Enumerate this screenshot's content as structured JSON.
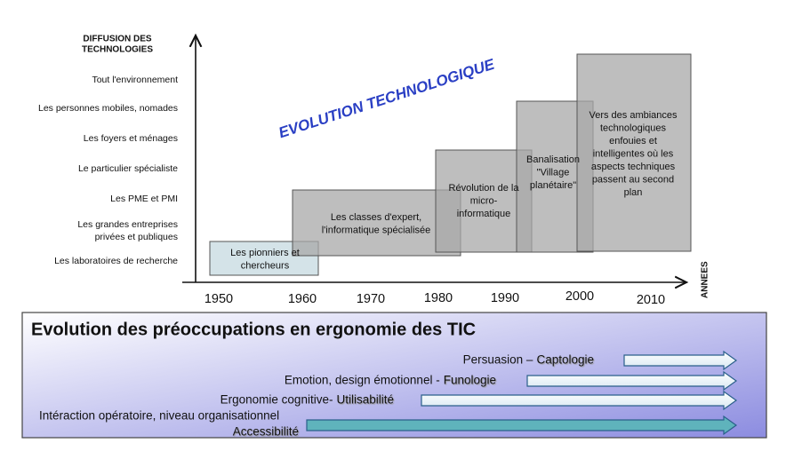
{
  "axis_title": [
    "DIFFUSION DES",
    "TECHNOLOGIES"
  ],
  "x_axis_title": "ANNEES",
  "levels": [
    [
      "Tout l'environnement"
    ],
    [
      "Les personnes mobiles, nomades"
    ],
    [
      "Les foyers et ménages"
    ],
    [
      "Le particulier spécialiste"
    ],
    [
      "Les PME et PMI"
    ],
    [
      "Les grandes entreprises",
      "privées et publiques"
    ],
    [
      "Les laboratoires de recherche"
    ]
  ],
  "years": [
    "1950",
    "1960",
    "1970",
    "1980",
    "1990",
    "2000",
    "2010"
  ],
  "banner": "EVOLUTION TECHNOLOGIQUE",
  "eras": [
    [
      "Les pionniers et",
      "chercheurs"
    ],
    [
      "Les classes d'expert,",
      "l'informatique spécialisée"
    ],
    [
      "Révolution de la",
      "micro-",
      "informatique"
    ],
    [
      "Banalisation",
      "\"Village",
      "planétaire\""
    ],
    [
      "Vers des ambiances",
      "technologiques",
      "enfouies et",
      "intelligentes où les",
      "aspects techniques",
      "passent au second",
      "plan"
    ]
  ],
  "panel": {
    "title": "Evolution des préoccupations en ergonomie des TIC",
    "rows": [
      {
        "label": "Persuasion –",
        "keyword": "Captologie"
      },
      {
        "label": "Emotion, design émotionnel -",
        "keyword": "Funologie"
      },
      {
        "label": "Ergonomie cognitive-",
        "keyword": "Utilisabilité"
      },
      {
        "label": "Intéraction opératoire, niveau organisationnel",
        "keyword": "Accessibilité"
      }
    ]
  }
}
